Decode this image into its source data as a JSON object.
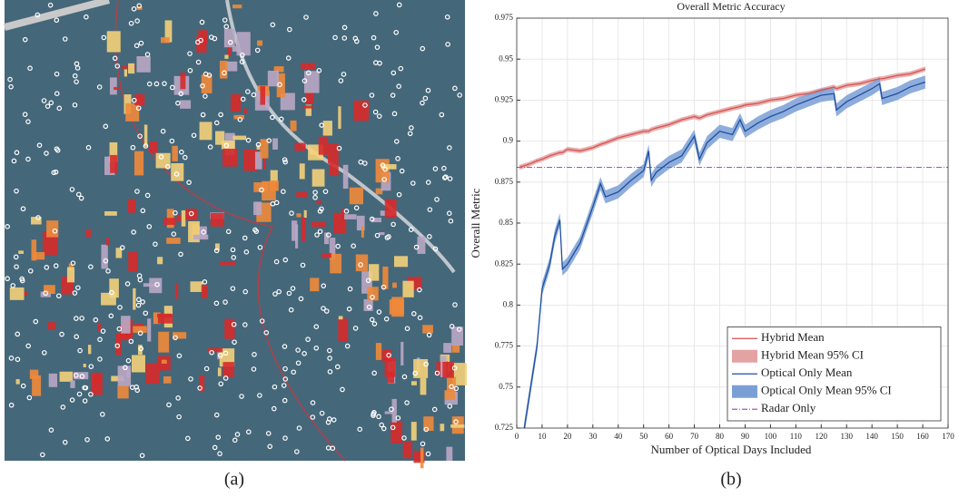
{
  "captions": [
    "(a)",
    "(b)"
  ],
  "chart_data": {
    "type": "line",
    "title": "Overall Metric Accuracy",
    "x_label": "Number of Optical Days Included",
    "y_label": "Overall Metric",
    "xlim": [
      0,
      170
    ],
    "xticks": [
      0,
      10,
      20,
      30,
      40,
      50,
      60,
      70,
      80,
      90,
      100,
      110,
      120,
      130,
      140,
      150,
      160,
      170
    ],
    "ylim": [
      0.725,
      0.975
    ],
    "yticks": [
      0.725,
      0.75,
      0.775,
      0.8,
      0.825,
      0.85,
      0.875,
      0.9,
      0.925,
      0.95,
      0.975
    ],
    "grid": true,
    "legend": "lower right",
    "x": [
      1,
      3,
      5,
      8,
      10,
      13,
      15,
      17,
      18,
      20,
      25,
      30,
      33,
      35,
      40,
      45,
      50,
      52,
      53,
      55,
      60,
      65,
      70,
      72,
      75,
      80,
      85,
      88,
      90,
      95,
      100,
      105,
      110,
      115,
      120,
      125,
      126,
      130,
      135,
      140,
      143,
      144,
      150,
      155,
      161
    ],
    "series": [
      {
        "name": "Hybrid Mean",
        "kind": "line",
        "color": "#d9534f",
        "values": [
          0.884,
          0.885,
          0.886,
          0.888,
          0.889,
          0.891,
          0.892,
          0.893,
          0.893,
          0.895,
          0.894,
          0.896,
          0.898,
          0.899,
          0.902,
          0.904,
          0.906,
          0.906,
          0.907,
          0.908,
          0.91,
          0.913,
          0.915,
          0.914,
          0.916,
          0.918,
          0.92,
          0.921,
          0.922,
          0.923,
          0.925,
          0.926,
          0.928,
          0.929,
          0.931,
          0.933,
          0.932,
          0.934,
          0.935,
          0.937,
          0.938,
          0.938,
          0.94,
          0.941,
          0.944
        ]
      },
      {
        "name": "Hybrid Mean 95% CI",
        "kind": "band",
        "color": "#e3a3a3",
        "lower": [
          0.8825,
          0.8835,
          0.8845,
          0.8865,
          0.8875,
          0.8895,
          0.8905,
          0.8915,
          0.8915,
          0.8935,
          0.8925,
          0.8945,
          0.8965,
          0.8975,
          0.9005,
          0.9025,
          0.9045,
          0.9045,
          0.9055,
          0.9065,
          0.9085,
          0.9115,
          0.9135,
          0.9125,
          0.9145,
          0.9165,
          0.9185,
          0.9195,
          0.9205,
          0.9215,
          0.9235,
          0.9245,
          0.9265,
          0.9275,
          0.9295,
          0.9315,
          0.9305,
          0.9325,
          0.9335,
          0.9355,
          0.9365,
          0.9365,
          0.9385,
          0.9395,
          0.9425
        ],
        "upper": [
          0.8855,
          0.8865,
          0.8875,
          0.8895,
          0.8905,
          0.8925,
          0.8935,
          0.8945,
          0.8945,
          0.8965,
          0.8955,
          0.8975,
          0.8995,
          0.9005,
          0.9035,
          0.9055,
          0.9075,
          0.9075,
          0.9085,
          0.9095,
          0.9115,
          0.9145,
          0.9165,
          0.9155,
          0.9175,
          0.9195,
          0.9215,
          0.9225,
          0.9235,
          0.9245,
          0.9265,
          0.9275,
          0.9295,
          0.9305,
          0.9325,
          0.9345,
          0.9335,
          0.9355,
          0.9365,
          0.9385,
          0.9395,
          0.9395,
          0.9415,
          0.9425,
          0.9455
        ]
      },
      {
        "name": "Optical Only Mean",
        "kind": "line",
        "color": "#1f4f9e",
        "values": [
          0.7,
          0.725,
          0.745,
          0.775,
          0.81,
          0.825,
          0.842,
          0.852,
          0.822,
          0.825,
          0.838,
          0.86,
          0.874,
          0.866,
          0.869,
          0.876,
          0.882,
          0.894,
          0.876,
          0.881,
          0.887,
          0.891,
          0.903,
          0.889,
          0.899,
          0.906,
          0.904,
          0.913,
          0.906,
          0.911,
          0.915,
          0.918,
          0.922,
          0.925,
          0.928,
          0.929,
          0.919,
          0.924,
          0.928,
          0.932,
          0.935,
          0.926,
          0.929,
          0.933,
          0.936
        ]
      },
      {
        "name": "Optical Only Mean 95% CI",
        "kind": "band",
        "color": "#7a9fd6",
        "lower": [
          0.696,
          0.721,
          0.741,
          0.771,
          0.806,
          0.821,
          0.838,
          0.848,
          0.818,
          0.821,
          0.834,
          0.856,
          0.87,
          0.862,
          0.865,
          0.872,
          0.878,
          0.89,
          0.872,
          0.877,
          0.883,
          0.887,
          0.899,
          0.885,
          0.895,
          0.902,
          0.9,
          0.909,
          0.902,
          0.907,
          0.911,
          0.914,
          0.918,
          0.921,
          0.924,
          0.925,
          0.915,
          0.92,
          0.924,
          0.928,
          0.931,
          0.922,
          0.925,
          0.929,
          0.932
        ],
        "upper": [
          0.704,
          0.729,
          0.749,
          0.779,
          0.814,
          0.829,
          0.846,
          0.856,
          0.826,
          0.829,
          0.842,
          0.864,
          0.878,
          0.87,
          0.873,
          0.88,
          0.886,
          0.898,
          0.88,
          0.885,
          0.891,
          0.895,
          0.907,
          0.893,
          0.903,
          0.91,
          0.908,
          0.917,
          0.91,
          0.915,
          0.919,
          0.922,
          0.926,
          0.929,
          0.932,
          0.933,
          0.923,
          0.928,
          0.932,
          0.936,
          0.939,
          0.93,
          0.933,
          0.937,
          0.94
        ]
      },
      {
        "name": "Radar Only",
        "kind": "hline",
        "color": "#a64dd6",
        "value": 0.884
      }
    ]
  }
}
